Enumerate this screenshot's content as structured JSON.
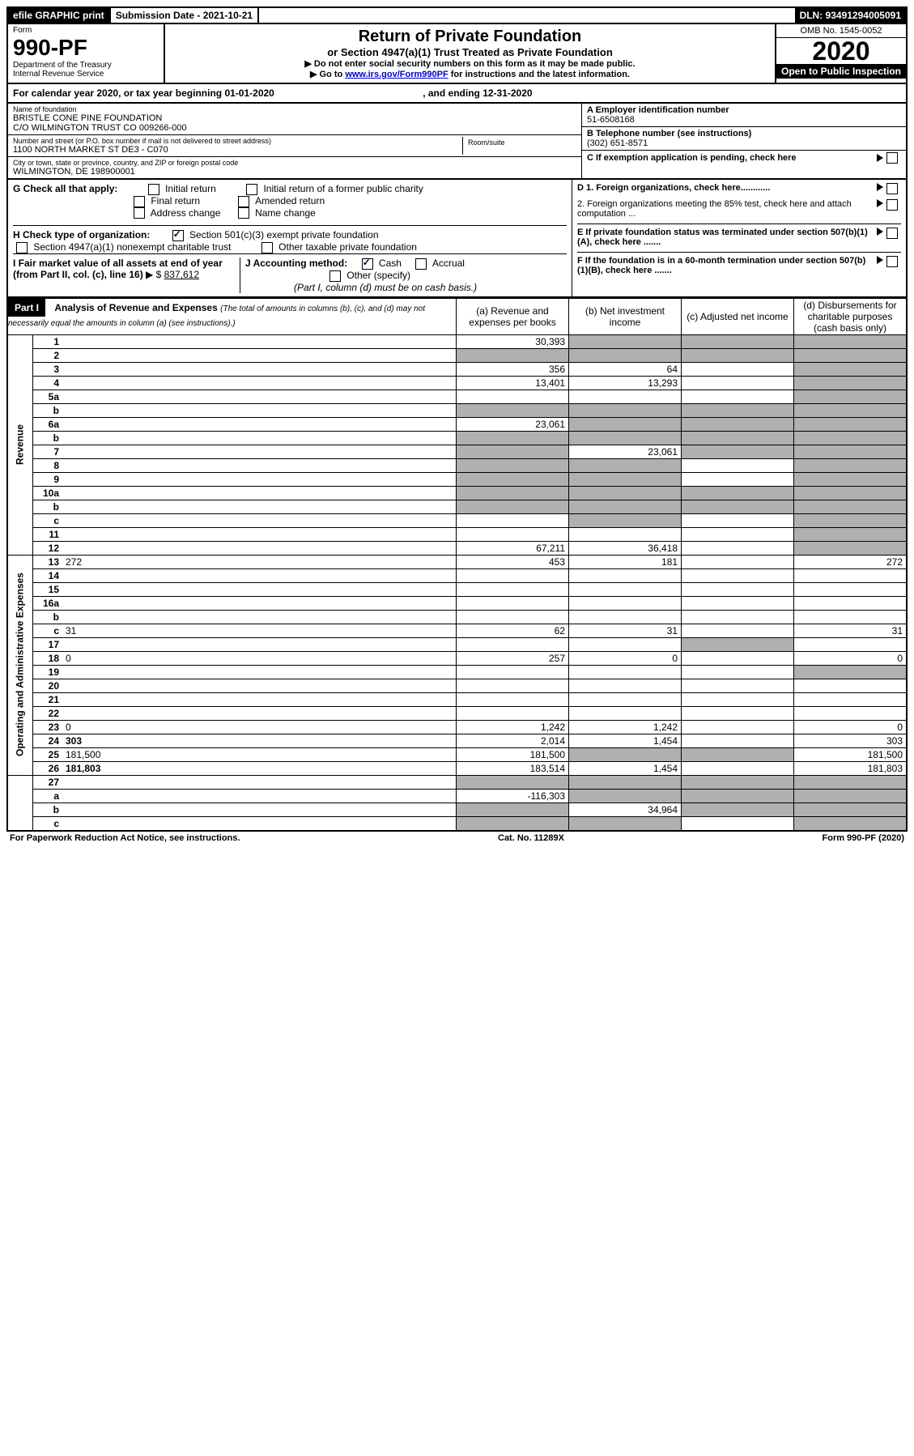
{
  "top_bar": {
    "efile": "efile GRAPHIC print",
    "submission": "Submission Date - 2021-10-21",
    "dln": "DLN: 93491294005091"
  },
  "header": {
    "form": "Form",
    "number": "990-PF",
    "dept": "Department of the Treasury",
    "irs": "Internal Revenue Service",
    "title": "Return of Private Foundation",
    "subtitle": "or Section 4947(a)(1) Trust Treated as Private Foundation",
    "instr1": "▶ Do not enter social security numbers on this form as it may be made public.",
    "instr2_prefix": "▶ Go to ",
    "instr2_link": "www.irs.gov/Form990PF",
    "instr2_suffix": " for instructions and the latest information.",
    "omb": "OMB No. 1545-0052",
    "year": "2020",
    "open": "Open to Public Inspection"
  },
  "year_line": {
    "prefix": "For calendar year 2020, or tax year beginning ",
    "begin": "01-01-2020",
    "mid": ", and ending ",
    "end": "12-31-2020"
  },
  "info": {
    "name_label": "Name of foundation",
    "name1": "BRISTLE CONE PINE FOUNDATION",
    "name2": "C/O WILMINGTON TRUST CO 009266-000",
    "addr_label": "Number and street (or P.O. box number if mail is not delivered to street address)",
    "addr": "1100 NORTH MARKET ST DE3 - C070",
    "room_label": "Room/suite",
    "city_label": "City or town, state or province, country, and ZIP or foreign postal code",
    "city": "WILMINGTON, DE  198900001",
    "ein_label": "A Employer identification number",
    "ein": "51-6508168",
    "phone_label": "B Telephone number (see instructions)",
    "phone": "(302) 651-8571",
    "c_label": "C If exemption application is pending, check here"
  },
  "checks": {
    "g_label": "G Check all that apply:",
    "g_opts": [
      "Initial return",
      "Initial return of a former public charity",
      "Final return",
      "Amended return",
      "Address change",
      "Name change"
    ],
    "h_label": "H Check type of organization:",
    "h1": "Section 501(c)(3) exempt private foundation",
    "h2": "Section 4947(a)(1) nonexempt charitable trust",
    "h3": "Other taxable private foundation",
    "i_label": "I Fair market value of all assets at end of year (from Part II, col. (c), line 16)",
    "i_val": "837,612",
    "j_label": "J Accounting method:",
    "j_cash": "Cash",
    "j_accrual": "Accrual",
    "j_other": "Other (specify)",
    "j_note": "(Part I, column (d) must be on cash basis.)",
    "d1": "D 1. Foreign organizations, check here............",
    "d2": "2. Foreign organizations meeting the 85% test, check here and attach computation ...",
    "e": "E  If private foundation status was terminated under section 507(b)(1)(A), check here .......",
    "f": "F  If the foundation is in a 60-month termination under section 507(b)(1)(B), check here .......",
    "arrow": "▶"
  },
  "part1": {
    "label": "Part I",
    "title": "Analysis of Revenue and Expenses",
    "note": "(The total of amounts in columns (b), (c), and (d) may not necessarily equal the amounts in column (a) (see instructions).)",
    "cols": {
      "a": "(a) Revenue and expenses per books",
      "b": "(b) Net investment income",
      "c": "(c) Adjusted net income",
      "d": "(d) Disbursements for charitable purposes (cash basis only)"
    }
  },
  "vert": {
    "revenue": "Revenue",
    "opex": "Operating and Administrative Expenses"
  },
  "rows": [
    {
      "n": "1",
      "d": "",
      "a": "30,393",
      "b": "",
      "bs": true,
      "c": "",
      "cs": true,
      "ds": true
    },
    {
      "n": "2",
      "d": "",
      "a": "",
      "as": true,
      "b": "",
      "bs": true,
      "c": "",
      "cs": true,
      "ds": true
    },
    {
      "n": "3",
      "d": "",
      "a": "356",
      "b": "64",
      "c": "",
      "ds": true
    },
    {
      "n": "4",
      "d": "",
      "a": "13,401",
      "b": "13,293",
      "c": "",
      "ds": true
    },
    {
      "n": "5a",
      "d": "",
      "a": "",
      "b": "",
      "c": "",
      "ds": true
    },
    {
      "n": "b",
      "d": "",
      "a": "",
      "as": true,
      "b": "",
      "bs": true,
      "c": "",
      "cs": true,
      "ds": true
    },
    {
      "n": "6a",
      "d": "",
      "a": "23,061",
      "b": "",
      "bs": true,
      "c": "",
      "cs": true,
      "ds": true
    },
    {
      "n": "b",
      "d": "",
      "a": "",
      "as": true,
      "b": "",
      "bs": true,
      "c": "",
      "cs": true,
      "ds": true
    },
    {
      "n": "7",
      "d": "",
      "a": "",
      "as": true,
      "b": "23,061",
      "c": "",
      "cs": true,
      "ds": true
    },
    {
      "n": "8",
      "d": "",
      "a": "",
      "as": true,
      "b": "",
      "bs": true,
      "c": "",
      "ds": true
    },
    {
      "n": "9",
      "d": "",
      "a": "",
      "as": true,
      "b": "",
      "bs": true,
      "c": "",
      "ds": true
    },
    {
      "n": "10a",
      "d": "",
      "a": "",
      "as": true,
      "b": "",
      "bs": true,
      "c": "",
      "cs": true,
      "ds": true
    },
    {
      "n": "b",
      "d": "",
      "a": "",
      "as": true,
      "b": "",
      "bs": true,
      "c": "",
      "cs": true,
      "ds": true
    },
    {
      "n": "c",
      "d": "",
      "a": "",
      "b": "",
      "bs": true,
      "c": "",
      "ds": true
    },
    {
      "n": "11",
      "d": "",
      "a": "",
      "b": "",
      "c": "",
      "ds": true
    },
    {
      "n": "12",
      "d": "",
      "bold": true,
      "a": "67,211",
      "b": "36,418",
      "c": "",
      "ds": true
    }
  ],
  "rows2": [
    {
      "n": "13",
      "d": "272",
      "a": "453",
      "b": "181",
      "c": ""
    },
    {
      "n": "14",
      "d": "",
      "a": "",
      "b": "",
      "c": ""
    },
    {
      "n": "15",
      "d": "",
      "a": "",
      "b": "",
      "c": ""
    },
    {
      "n": "16a",
      "d": "",
      "a": "",
      "b": "",
      "c": ""
    },
    {
      "n": "b",
      "d": "",
      "a": "",
      "b": "",
      "c": ""
    },
    {
      "n": "c",
      "d": "31",
      "a": "62",
      "b": "31",
      "c": ""
    },
    {
      "n": "17",
      "d": "",
      "a": "",
      "b": "",
      "c": "",
      "cs": true
    },
    {
      "n": "18",
      "d": "0",
      "a": "257",
      "b": "0",
      "c": ""
    },
    {
      "n": "19",
      "d": "",
      "a": "",
      "b": "",
      "c": "",
      "ds": true
    },
    {
      "n": "20",
      "d": "",
      "a": "",
      "b": "",
      "c": ""
    },
    {
      "n": "21",
      "d": "",
      "a": "",
      "b": "",
      "c": ""
    },
    {
      "n": "22",
      "d": "",
      "a": "",
      "b": "",
      "c": ""
    },
    {
      "n": "23",
      "d": "0",
      "a": "1,242",
      "b": "1,242",
      "c": ""
    },
    {
      "n": "24",
      "d": "303",
      "bold": true,
      "a": "2,014",
      "b": "1,454",
      "c": ""
    },
    {
      "n": "25",
      "d": "181,500",
      "a": "181,500",
      "b": "",
      "bs": true,
      "c": "",
      "cs": true
    },
    {
      "n": "26",
      "d": "181,803",
      "bold": true,
      "a": "183,514",
      "b": "1,454",
      "c": ""
    }
  ],
  "rows3": [
    {
      "n": "27",
      "d": "",
      "a": "",
      "as": true,
      "b": "",
      "bs": true,
      "c": "",
      "cs": true,
      "ds": true
    },
    {
      "n": "a",
      "d": "",
      "bold": true,
      "a": "-116,303",
      "b": "",
      "bs": true,
      "c": "",
      "cs": true,
      "ds": true
    },
    {
      "n": "b",
      "d": "",
      "bold": true,
      "a": "",
      "as": true,
      "b": "34,964",
      "c": "",
      "cs": true,
      "ds": true
    },
    {
      "n": "c",
      "d": "",
      "bold": true,
      "a": "",
      "as": true,
      "b": "",
      "bs": true,
      "c": "",
      "ds": true
    }
  ],
  "footer": {
    "left": "For Paperwork Reduction Act Notice, see instructions.",
    "mid": "Cat. No. 11289X",
    "right": "Form 990-PF (2020)"
  }
}
